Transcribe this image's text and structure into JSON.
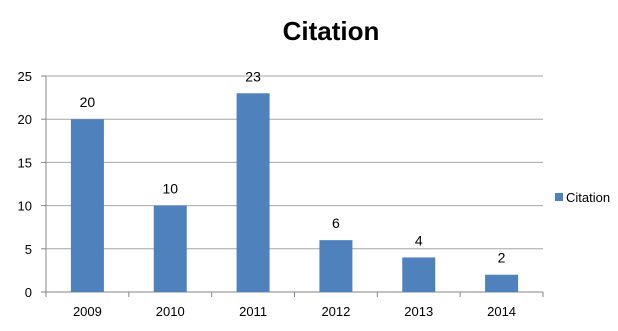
{
  "chart_data": {
    "type": "bar",
    "title": "Citation",
    "xlabel": "",
    "ylabel": "",
    "categories": [
      "2009",
      "2010",
      "2011",
      "2012",
      "2013",
      "2014"
    ],
    "series": [
      {
        "name": "Citation",
        "values": [
          20,
          10,
          23,
          6,
          4,
          2
        ],
        "color": "#4f81bd"
      }
    ],
    "data_labels": [
      "20",
      "10",
      "23",
      "6",
      "4",
      "2"
    ],
    "ylim": [
      0,
      25
    ],
    "yticks": [
      "0",
      "5",
      "10",
      "15",
      "20",
      "25"
    ],
    "grid": true,
    "legend": "right",
    "colors": {
      "bar": "#4f81bd",
      "grid": "#a6a6a6",
      "axis": "#868686"
    }
  }
}
